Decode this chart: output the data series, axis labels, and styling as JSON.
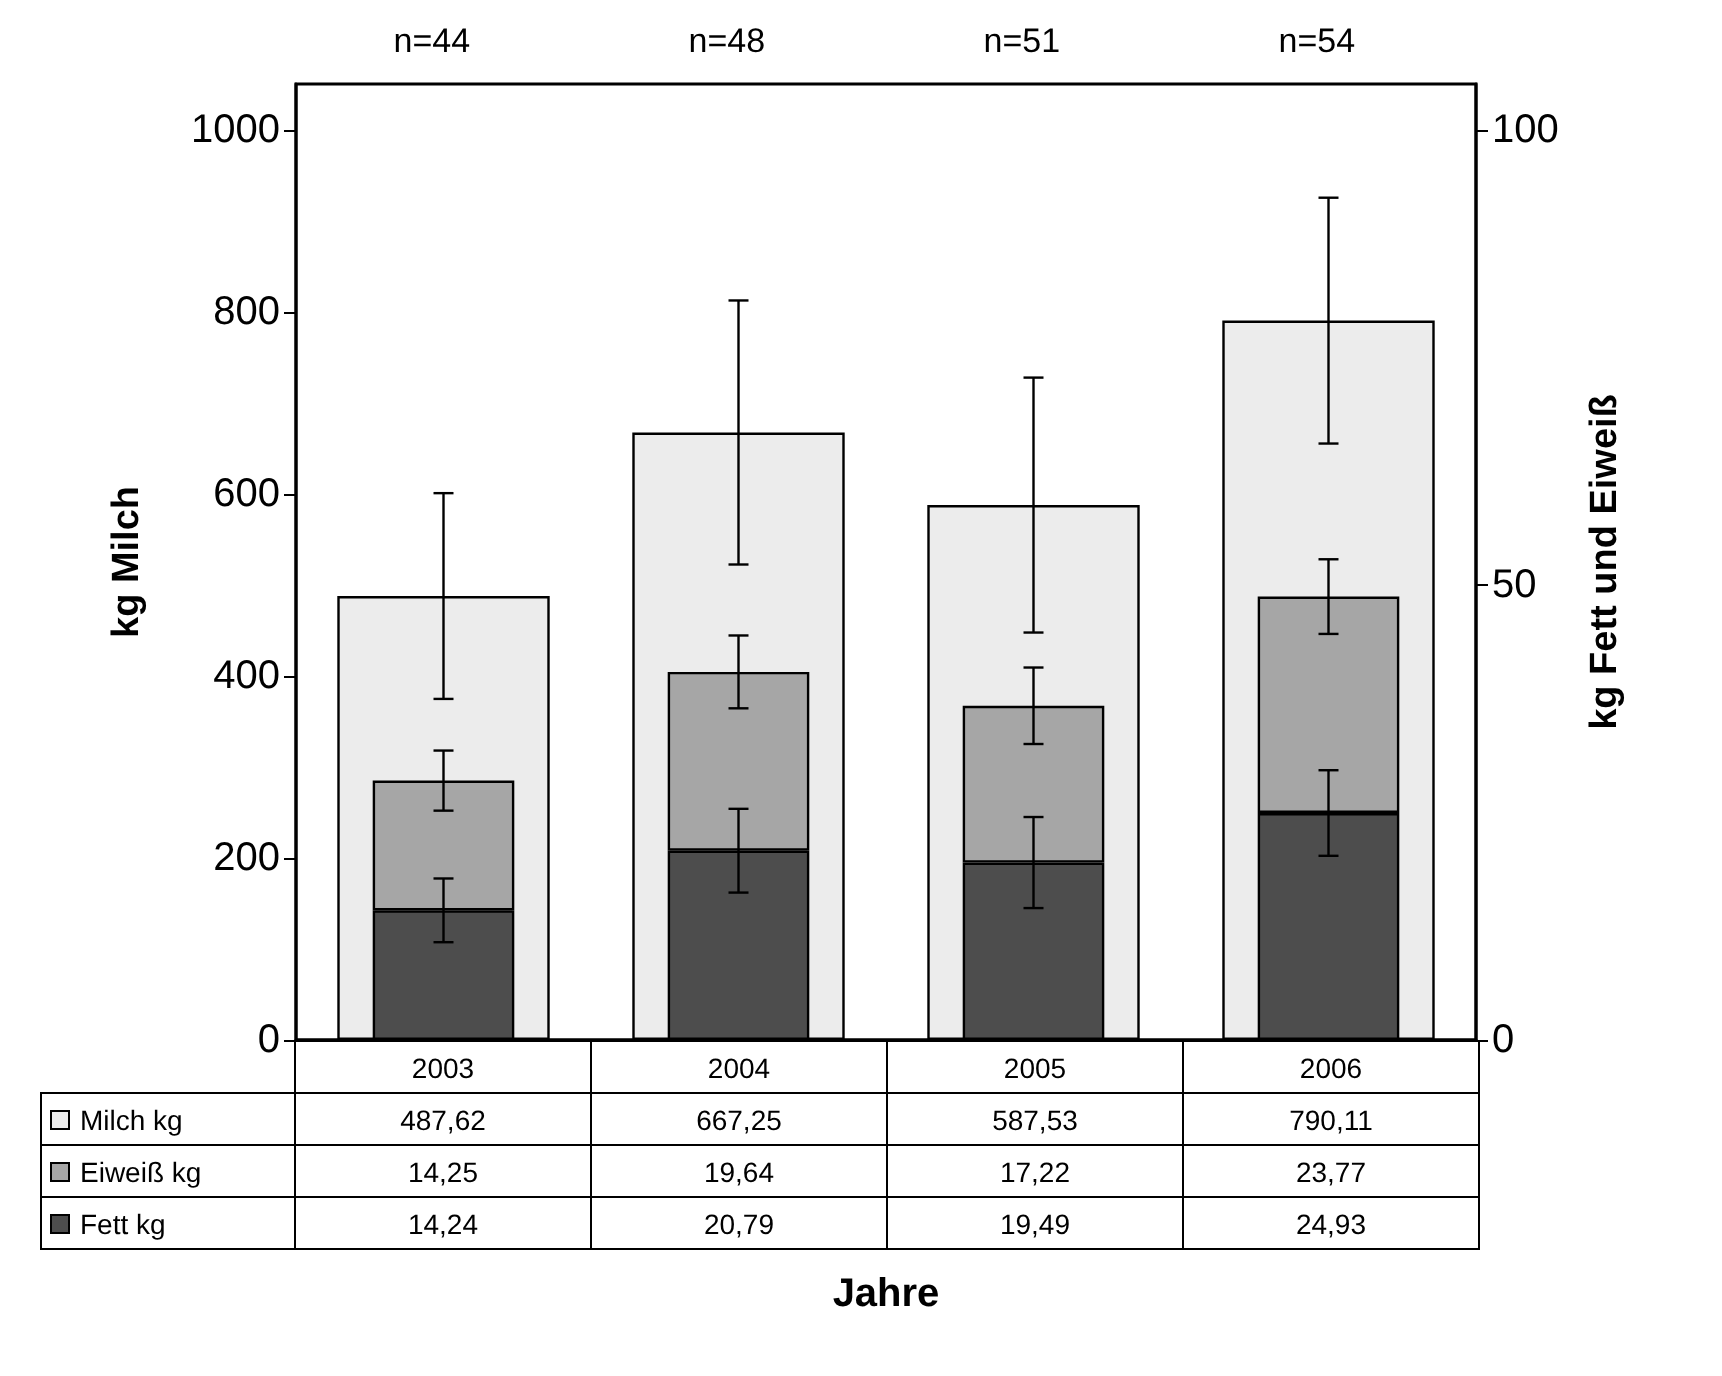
{
  "chart_data": {
    "type": "bar",
    "xlabel": "Jahre",
    "ylabel": "kg Milch",
    "y2label": "kg Fett und Eiweiß",
    "categories": [
      "2003",
      "2004",
      "2005",
      "2006"
    ],
    "series": [
      {
        "name": "Milch kg",
        "color": "#ececec",
        "values": [
          487.62,
          667.25,
          587.53,
          790.11
        ],
        "errors": [
          113,
          145,
          140,
          135
        ],
        "value_labels": [
          "487,62",
          "667,25",
          "587,53",
          "790,11"
        ]
      },
      {
        "name": "Eiweiß kg",
        "color": "#a6a6a6",
        "values": [
          14.25,
          19.64,
          17.22,
          23.77
        ],
        "axis": "y2",
        "errors": [
          3.3,
          4,
          4.2,
          4.1
        ],
        "value_labels": [
          "14,25",
          "19,64",
          "17,22",
          "23,77"
        ]
      },
      {
        "name": "Fett kg",
        "color": "#4d4d4d",
        "values": [
          14.24,
          20.79,
          19.49,
          24.93
        ],
        "axis": "y2",
        "errors": [
          3.5,
          4.6,
          5,
          4.7
        ],
        "value_labels": [
          "14,24",
          "20,79",
          "19,49",
          "24,93"
        ]
      }
    ],
    "stacked": true,
    "ylim": [
      0,
      1050
    ],
    "yticks": [
      0,
      200,
      400,
      600,
      800,
      1000
    ],
    "y2lim": [
      0,
      105
    ],
    "y2ticks": [
      0,
      50,
      100
    ],
    "annotations": [
      "n=44",
      "n=48",
      "n=51",
      "n=54"
    ],
    "data_labels": true,
    "grid": false,
    "legend": "bottom"
  }
}
